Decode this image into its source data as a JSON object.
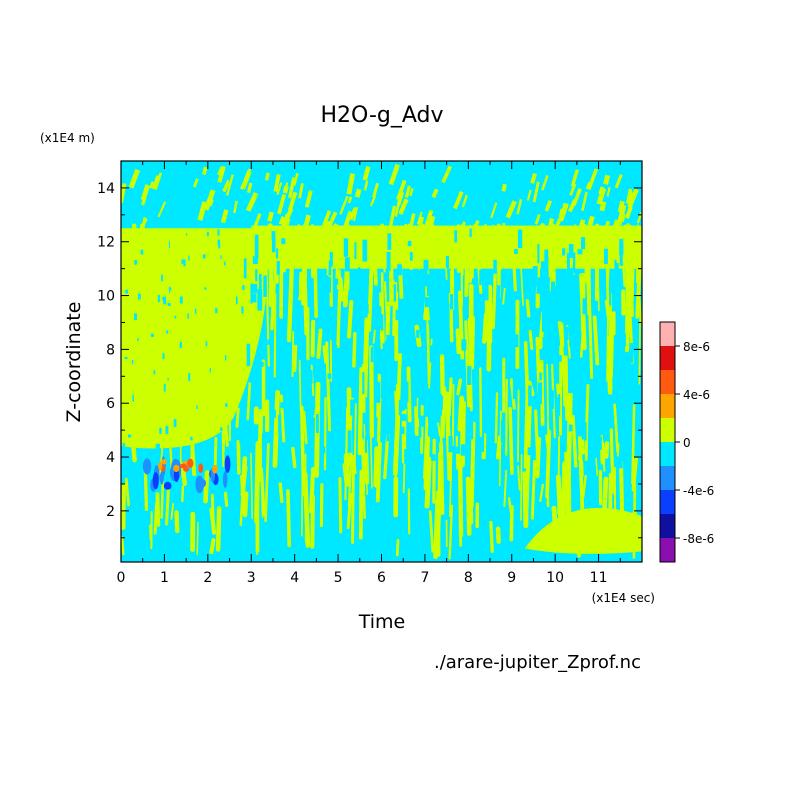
{
  "chart_data": {
    "type": "heatmap",
    "title": "H2O-g_Adv",
    "xlabel": "Time",
    "ylabel": "Z-coordinate",
    "x_unit": "(x1E4 sec)",
    "y_unit": "(x1E4 m)",
    "xlim": [
      0,
      12
    ],
    "ylim": [
      0.1,
      15
    ],
    "x_ticks": [
      0,
      1,
      2,
      3,
      4,
      5,
      6,
      7,
      8,
      9,
      10,
      11
    ],
    "y_ticks": [
      2,
      4,
      6,
      8,
      10,
      12,
      14
    ],
    "colorbar": {
      "levels": [
        -1e-05,
        -8e-06,
        -6e-06,
        -4e-06,
        -2e-06,
        0,
        2e-06,
        4e-06,
        6e-06,
        8e-06,
        1e-05
      ],
      "colors": [
        "#8a0eb0",
        "#1010a0",
        "#0a3fff",
        "#1e90ff",
        "#00e8ff",
        "#ccff00",
        "#ffa500",
        "#ff5a10",
        "#e01010",
        "#ffb0b0"
      ],
      "tick_labels": [
        "8e-6",
        "4e-6",
        "0",
        "-4e-6",
        "-8e-6"
      ],
      "tick_values": [
        8e-06,
        4e-06,
        0,
        -4e-06,
        -8e-06
      ]
    },
    "regions": [
      {
        "x": [
          0,
          3
        ],
        "y": [
          4,
          12.5
        ],
        "value": 1e-06,
        "note": "broad positive band"
      },
      {
        "x": [
          0.5,
          2.5
        ],
        "y": [
          2.8,
          3.8
        ],
        "value": -5e-06,
        "note": "negative patch"
      },
      {
        "x": [
          0.8,
          2.2
        ],
        "y": [
          3.5,
          3.9
        ],
        "value": 4e-06,
        "note": "positive patch"
      }
    ]
  },
  "source_file": "./arare-jupiter_Zprof.nc",
  "colors": {
    "positive_main": "#ccff00",
    "negative_main": "#00e8ff"
  }
}
